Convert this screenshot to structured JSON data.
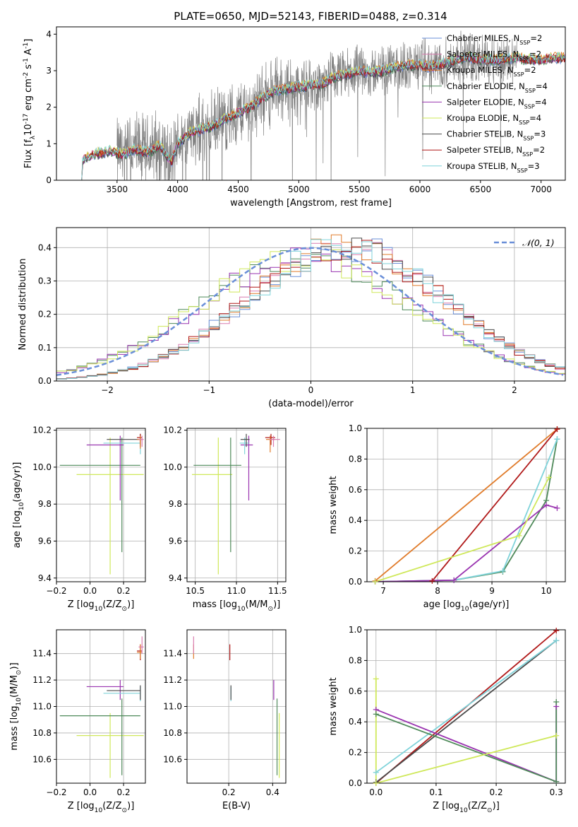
{
  "figure": {
    "title": "PLATE=0650, MJD=52143, FIBERID=0488, z=0.314"
  },
  "colors": {
    "data": "#808080",
    "Chabrier MILES": "#6a8fd8",
    "Salpeter MILES": "#d97db0",
    "Kroupa MILES": "#e07b2a",
    "Chabrier ELODIE": "#4f8a5a",
    "Salpeter ELODIE": "#9a34b0",
    "Kroupa ELODIE": "#cfe85a",
    "Chabrier STELIB": "#4a4a4a",
    "Salpeter STELIB": "#b01818",
    "Kroupa STELIB": "#7fd3da",
    "gaussian": "#6a8fd8"
  },
  "chart_data": [
    {
      "id": "spectrum",
      "type": "line",
      "title": "PLATE=0650, MJD=52143, FIBERID=0488, z=0.314",
      "xlabel": "wavelength [Angstrom, rest frame]",
      "ylabel": "Flux [f$_\\lambda$10$^{-17}$ erg cm$^{-2}$ s$^{-1}$ A$^{-1}$]",
      "xlim": [
        3000,
        7200
      ],
      "ylim": [
        0,
        4.2
      ],
      "xticks": [
        3500,
        4000,
        4500,
        5000,
        5500,
        6000,
        6500,
        7000
      ],
      "yticks": [
        0,
        1,
        2,
        3,
        4
      ],
      "grid": false,
      "legend_placement": "top-right",
      "legend": [
        "Chabrier MILES, N_SSP=2",
        "Salpeter MILES, N_SSP=2",
        "Kroupa MILES, N_SSP=2",
        "Chabrier ELODIE, N_SSP=4",
        "Salpeter ELODIE, N_SSP=4",
        "Kroupa ELODIE, N_SSP=4",
        "Chabrier STELIB, N_SSP=3",
        "Salpeter STELIB, N_SSP=2",
        "Kroupa STELIB, N_SSP=3"
      ],
      "continuum": [
        [
          3200,
          0.0
        ],
        [
          3210,
          0.55
        ],
        [
          3300,
          0.7
        ],
        [
          3450,
          0.8
        ],
        [
          3550,
          0.7
        ],
        [
          3650,
          0.85
        ],
        [
          3750,
          0.75
        ],
        [
          3850,
          0.95
        ],
        [
          3950,
          0.5
        ],
        [
          4000,
          1.0
        ],
        [
          4100,
          1.3
        ],
        [
          4200,
          1.4
        ],
        [
          4300,
          1.5
        ],
        [
          4400,
          1.7
        ],
        [
          4500,
          1.85
        ],
        [
          4600,
          2.0
        ],
        [
          4700,
          2.25
        ],
        [
          4800,
          2.45
        ],
        [
          4900,
          2.5
        ],
        [
          5000,
          2.55
        ],
        [
          5100,
          2.6
        ],
        [
          5200,
          2.65
        ],
        [
          5300,
          2.85
        ],
        [
          5400,
          2.9
        ],
        [
          5500,
          3.0
        ],
        [
          5600,
          2.95
        ],
        [
          5700,
          3.0
        ],
        [
          5800,
          3.1
        ],
        [
          5900,
          3.15
        ],
        [
          6000,
          3.15
        ],
        [
          6100,
          3.1
        ],
        [
          6200,
          3.2
        ],
        [
          6300,
          3.3
        ],
        [
          6400,
          3.35
        ],
        [
          6500,
          3.3
        ],
        [
          6600,
          3.3
        ],
        [
          6700,
          3.3
        ],
        [
          6800,
          3.35
        ],
        [
          6900,
          3.3
        ],
        [
          7000,
          3.3
        ],
        [
          7100,
          3.35
        ]
      ],
      "data_range": [
        3500,
        6800
      ]
    },
    {
      "id": "residuals",
      "type": "line",
      "xlabel": "(data-model)/error",
      "ylabel": "Normed distribution",
      "xlim": [
        -2.5,
        2.5
      ],
      "ylim": [
        0,
        0.46
      ],
      "xticks": [
        -2,
        -1,
        0,
        1,
        2
      ],
      "yticks": [
        0.0,
        0.1,
        0.2,
        0.3,
        0.4
      ],
      "grid": true,
      "legend_placement": "top-right",
      "legend": [
        "$\\mathcal{N}(0, 1)$"
      ],
      "bin_width": 0.1,
      "groups": [
        {
          "shift": -0.05,
          "width": 1.05,
          "models": [
            "Chabrier ELODIE",
            "Salpeter ELODIE",
            "Kroupa ELODIE"
          ]
        },
        {
          "shift": 0.35,
          "width": 0.97,
          "models": [
            "Chabrier MILES",
            "Salpeter MILES",
            "Kroupa MILES",
            "Chabrier STELIB",
            "Salpeter STELIB",
            "Kroupa STELIB"
          ]
        }
      ]
    },
    {
      "id": "age-vs-Z",
      "type": "scatter",
      "xlabel": "Z [log$_{10}$(Z/Z$_\\odot$)]",
      "ylabel": "age  [log$_{10}$(age/yr)]",
      "xlim": [
        -0.2,
        0.33
      ],
      "ylim": [
        9.38,
        10.21
      ],
      "xticks": [
        -0.2,
        0.0,
        0.2
      ],
      "yticks": [
        9.4,
        9.6,
        9.8,
        10.0,
        10.2
      ],
      "grid": true,
      "points": [
        {
          "model": "Kroupa ELODIE",
          "x": 0.12,
          "y": 9.96,
          "xerr": [
            0.2,
            0.2
          ],
          "yerr": [
            0.54,
            0.2
          ]
        },
        {
          "model": "Chabrier ELODIE",
          "x": 0.19,
          "y": 10.01,
          "xerr": [
            0.37,
            0.11
          ],
          "yerr": [
            0.47,
            0.15
          ]
        },
        {
          "model": "Salpeter ELODIE",
          "x": 0.18,
          "y": 10.12,
          "xerr": [
            0.2,
            0.02
          ],
          "yerr": [
            0.3,
            0.05
          ]
        },
        {
          "model": "Kroupa STELIB",
          "x": 0.3,
          "y": 10.13,
          "xerr": [
            0.22,
            0.0
          ],
          "yerr": [
            0.06,
            0.03
          ]
        },
        {
          "model": "Chabrier STELIB",
          "x": 0.3,
          "y": 10.15,
          "xerr": [
            0.2,
            0.0
          ],
          "yerr": [
            0.04,
            0.03
          ]
        },
        {
          "model": "Salpeter STELIB",
          "x": 0.3,
          "y": 10.16,
          "xerr": [
            0.02,
            0.01
          ],
          "yerr": [
            0.04,
            0.02
          ]
        },
        {
          "model": "Kroupa MILES",
          "x": 0.3,
          "y": 10.15,
          "xerr": [
            0.02,
            0.01
          ],
          "yerr": [
            0.05,
            0.02
          ]
        },
        {
          "model": "Salpeter MILES",
          "x": 0.31,
          "y": 10.15,
          "xerr": [
            0.02,
            0.01
          ],
          "yerr": [
            0.04,
            0.02
          ]
        }
      ]
    },
    {
      "id": "age-vs-mass",
      "type": "scatter",
      "xlabel": "mass [log$_{10}$(M/M$_\\odot$)]",
      "xlim": [
        10.4,
        11.6
      ],
      "ylim": [
        9.38,
        10.21
      ],
      "xticks": [
        10.5,
        11.0,
        11.5
      ],
      "yticks": [
        9.4,
        9.6,
        9.8,
        10.0,
        10.2
      ],
      "grid": true,
      "points": [
        {
          "model": "Kroupa ELODIE",
          "x": 10.78,
          "y": 9.96,
          "xerr": [
            0.32,
            0.17
          ],
          "yerr": [
            0.54,
            0.2
          ]
        },
        {
          "model": "Chabrier ELODIE",
          "x": 10.93,
          "y": 10.01,
          "xerr": [
            0.45,
            0.13
          ],
          "yerr": [
            0.47,
            0.15
          ]
        },
        {
          "model": "Salpeter ELODIE",
          "x": 11.15,
          "y": 10.12,
          "xerr": [
            0.1,
            0.05
          ],
          "yerr": [
            0.3,
            0.05
          ]
        },
        {
          "model": "Kroupa STELIB",
          "x": 11.1,
          "y": 10.13,
          "xerr": [
            0.06,
            0.05
          ],
          "yerr": [
            0.06,
            0.03
          ]
        },
        {
          "model": "Chabrier STELIB",
          "x": 11.12,
          "y": 10.15,
          "xerr": [
            0.07,
            0.04
          ],
          "yerr": [
            0.04,
            0.03
          ]
        },
        {
          "model": "Salpeter STELIB",
          "x": 11.42,
          "y": 10.16,
          "xerr": [
            0.07,
            0.05
          ],
          "yerr": [
            0.04,
            0.02
          ]
        },
        {
          "model": "Kroupa MILES",
          "x": 11.41,
          "y": 10.15,
          "xerr": [
            0.05,
            0.06
          ],
          "yerr": [
            0.07,
            0.02
          ]
        },
        {
          "model": "Salpeter MILES",
          "x": 11.45,
          "y": 10.15,
          "xerr": [
            0.05,
            0.08
          ],
          "yerr": [
            0.04,
            0.02
          ]
        }
      ]
    },
    {
      "id": "weight-vs-age",
      "type": "line",
      "xlabel": "age  [log$_{10}$(age/yr)]",
      "ylabel": "mass weight",
      "xlim": [
        6.7,
        10.35
      ],
      "ylim": [
        0,
        1.0
      ],
      "xticks": [
        7,
        8,
        9,
        10
      ],
      "yticks": [
        0.0,
        0.2,
        0.4,
        0.6,
        0.8,
        1.0
      ],
      "grid": true,
      "series": [
        {
          "model": "Kroupa MILES",
          "x": [
            6.85,
            10.2
          ],
          "y": [
            0.005,
            0.995
          ]
        },
        {
          "model": "Salpeter STELIB",
          "x": [
            7.9,
            10.2
          ],
          "y": [
            0.005,
            0.995
          ]
        },
        {
          "model": "Chabrier ELODIE",
          "x": [
            6.85,
            8.3,
            9.2,
            10.0,
            10.2
          ],
          "y": [
            0.0,
            0.01,
            0.065,
            0.53,
            0.93
          ]
        },
        {
          "model": "Kroupa STELIB",
          "x": [
            6.85,
            8.3,
            9.2,
            10.2
          ],
          "y": [
            0.0,
            0.01,
            0.07,
            0.93
          ]
        },
        {
          "model": "Salpeter ELODIE",
          "x": [
            6.85,
            8.3,
            10.0,
            10.2
          ],
          "y": [
            0.0,
            0.01,
            0.5,
            0.48
          ]
        },
        {
          "model": "Kroupa ELODIE",
          "x": [
            6.85,
            9.5,
            10.05
          ],
          "y": [
            0.0,
            0.3,
            0.68
          ]
        }
      ]
    },
    {
      "id": "mass-vs-Z",
      "type": "scatter",
      "xlabel": "Z [log$_{10}$(Z/Z$_\\odot$)]",
      "ylabel": "mass [log$_{10}$(M/M$_\\odot$)]",
      "xlim": [
        -0.2,
        0.33
      ],
      "ylim": [
        10.42,
        11.58
      ],
      "xticks": [
        -0.2,
        0.0,
        0.2
      ],
      "yticks": [
        10.6,
        10.8,
        11.0,
        11.2,
        11.4
      ],
      "grid": true,
      "points": [
        {
          "model": "Kroupa ELODIE",
          "x": 0.12,
          "y": 10.78,
          "xerr": [
            0.2,
            0.2
          ],
          "yerr": [
            0.32,
            0.17
          ]
        },
        {
          "model": "Chabrier ELODIE",
          "x": 0.19,
          "y": 10.93,
          "xerr": [
            0.37,
            0.11
          ],
          "yerr": [
            0.45,
            0.13
          ]
        },
        {
          "model": "Salpeter ELODIE",
          "x": 0.18,
          "y": 11.15,
          "xerr": [
            0.2,
            0.02
          ],
          "yerr": [
            0.1,
            0.05
          ]
        },
        {
          "model": "Kroupa STELIB",
          "x": 0.3,
          "y": 11.1,
          "xerr": [
            0.22,
            0.0
          ],
          "yerr": [
            0.06,
            0.05
          ]
        },
        {
          "model": "Chabrier STELIB",
          "x": 0.3,
          "y": 11.12,
          "xerr": [
            0.2,
            0.0
          ],
          "yerr": [
            0.07,
            0.04
          ]
        },
        {
          "model": "Salpeter STELIB",
          "x": 0.3,
          "y": 11.42,
          "xerr": [
            0.02,
            0.01
          ],
          "yerr": [
            0.07,
            0.05
          ]
        },
        {
          "model": "Kroupa MILES",
          "x": 0.3,
          "y": 11.41,
          "xerr": [
            0.02,
            0.01
          ],
          "yerr": [
            0.05,
            0.06
          ]
        },
        {
          "model": "Salpeter MILES",
          "x": 0.31,
          "y": 11.45,
          "xerr": [
            0.02,
            0.01
          ],
          "yerr": [
            0.05,
            0.08
          ]
        }
      ]
    },
    {
      "id": "mass-vs-ebv",
      "type": "scatter",
      "xlabel": "E(B-V)",
      "xlim": [
        0.01,
        0.46
      ],
      "ylim": [
        10.42,
        11.58
      ],
      "xticks": [
        0.2,
        0.4
      ],
      "yticks": [
        10.6,
        10.8,
        11.0,
        11.2,
        11.4
      ],
      "grid": true,
      "points": [
        {
          "model": "Kroupa ELODIE",
          "x": 0.43,
          "y": 10.78,
          "yerr": [
            0.32,
            0.17
          ]
        },
        {
          "model": "Chabrier ELODIE",
          "x": 0.42,
          "y": 10.93,
          "yerr": [
            0.45,
            0.13
          ]
        },
        {
          "model": "Salpeter ELODIE",
          "x": 0.405,
          "y": 11.15,
          "yerr": [
            0.1,
            0.05
          ]
        },
        {
          "model": "Kroupa STELIB",
          "x": 0.21,
          "y": 11.1,
          "yerr": [
            0.06,
            0.05
          ]
        },
        {
          "model": "Chabrier STELIB",
          "x": 0.21,
          "y": 11.12,
          "yerr": [
            0.07,
            0.04
          ]
        },
        {
          "model": "Salpeter STELIB",
          "x": 0.205,
          "y": 11.42,
          "yerr": [
            0.07,
            0.05
          ]
        },
        {
          "model": "Kroupa MILES",
          "x": 0.04,
          "y": 11.41,
          "yerr": [
            0.05,
            0.06
          ]
        },
        {
          "model": "Salpeter MILES",
          "x": 0.04,
          "y": 11.45,
          "yerr": [
            0.05,
            0.08
          ]
        }
      ]
    },
    {
      "id": "weight-vs-Z",
      "type": "line",
      "xlabel": "Z [log$_{10}$(Z/Z$_\\odot$)]",
      "ylabel": "mass weight",
      "xlim": [
        -0.015,
        0.315
      ],
      "ylim": [
        0,
        1.0
      ],
      "xticks": [
        0.0,
        0.1,
        0.2,
        0.3
      ],
      "yticks": [
        0.0,
        0.2,
        0.4,
        0.6,
        0.8,
        1.0
      ],
      "grid": true,
      "series": [
        {
          "model": "Salpeter STELIB",
          "x": [
            0.0,
            0.3
          ],
          "y": [
            0.0,
            0.995
          ]
        },
        {
          "model": "Chabrier STELIB",
          "x": [
            0.0,
            0.3
          ],
          "y": [
            0.005,
            0.93
          ]
        },
        {
          "model": "Kroupa STELIB",
          "x": [
            0.0,
            0.3
          ],
          "y": [
            0.07,
            0.93
          ]
        },
        {
          "model": "Salpeter ELODIE",
          "x": [
            0.0,
            0.3,
            0.3
          ],
          "y": [
            0.48,
            0.01,
            0.5
          ]
        },
        {
          "model": "Chabrier ELODIE",
          "x": [
            0.0,
            0.3,
            0.3
          ],
          "y": [
            0.45,
            0.01,
            0.53
          ]
        },
        {
          "model": "Kroupa ELODIE",
          "x": [
            0.0,
            0.0,
            0.3
          ],
          "y": [
            0.68,
            0.0,
            0.31
          ]
        }
      ]
    }
  ]
}
